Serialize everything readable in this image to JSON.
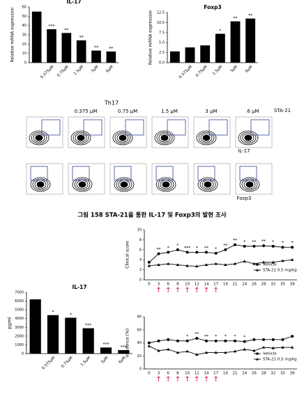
{
  "chart_data": [
    {
      "type": "bar",
      "title": "IL-17",
      "ylabel": "Relative mRNA expression",
      "categories": [
        null,
        "0.375μM",
        "0.75μM",
        "1.5μM",
        "3μM",
        "6μM"
      ],
      "values": [
        55,
        36,
        32,
        24,
        13,
        12
      ],
      "annotations": [
        null,
        "***",
        "**",
        "**",
        "**",
        "**"
      ],
      "color": "#000000",
      "ylim": [
        0,
        60
      ],
      "yticks": [
        0,
        10,
        20,
        30,
        40,
        50,
        60
      ]
    },
    {
      "type": "bar",
      "title": "Foxp3",
      "ylabel": "Relative mRNA expression",
      "categories": [
        null,
        "0.375μM",
        "0.75μM",
        "1.5μM",
        "3μM",
        "6μM"
      ],
      "values": [
        2.8,
        3.8,
        4.3,
        7.2,
        10.3,
        11
      ],
      "annotations": [
        null,
        null,
        null,
        "*",
        "**",
        "**"
      ],
      "color": "#000000",
      "ylim": [
        0,
        12.5
      ],
      "yticks": [
        {
          "value": 0,
          "label": "0.0"
        },
        2.5,
        {
          "value": 5,
          "label": "5.0"
        },
        7.5,
        {
          "value": 10,
          "label": "10.0"
        },
        12.5
      ]
    },
    {
      "type": "bar",
      "title": "IL-17",
      "ylabel": "pg/ml",
      "categories": [
        null,
        "0.375μM",
        "0.75μM",
        "1.5μM",
        "3μM",
        "6μM"
      ],
      "values": [
        6200,
        4400,
        4100,
        2900,
        700,
        400
      ],
      "annotations": [
        null,
        "*",
        "*",
        "***",
        "***",
        "***"
      ],
      "color": "#000000",
      "ylim": [
        0,
        7000
      ],
      "yticks": [
        0,
        1000,
        2000,
        3000,
        4000,
        5000,
        6000,
        7000
      ]
    },
    {
      "type": "line",
      "ylabel": "Clinical score",
      "categories": [
        "0",
        "3",
        "6",
        "8",
        "10",
        "12",
        "14",
        "17",
        "19",
        "21",
        "24",
        "26",
        "28",
        "32",
        "35",
        "39"
      ],
      "series": [
        {
          "name": "Vehicle",
          "color": "#000000",
          "values": [
            3.5,
            5.2,
            5.5,
            6,
            5.5,
            5.5,
            5.5,
            5.3,
            6,
            7,
            6.7,
            6.7,
            6.8,
            6.7,
            6.5,
            6.5
          ]
        },
        {
          "name": "STA-21 0.5 mg/kg",
          "color": "#000000",
          "values": [
            2.8,
            3,
            3.2,
            3,
            2.8,
            2.7,
            3,
            3.2,
            3,
            3.2,
            3.7,
            3.2,
            3.5,
            3.5,
            3.8,
            4
          ]
        }
      ],
      "annotations": [
        null,
        "**",
        "*",
        "*",
        "***",
        "*",
        "**",
        "*",
        "**",
        "**",
        "*",
        "**",
        "**",
        "*",
        "*",
        "*"
      ],
      "ylim": [
        0,
        10
      ],
      "yticks": [
        0,
        2,
        4,
        6,
        8,
        10
      ]
    },
    {
      "type": "line",
      "ylabel": "Incidence (%)",
      "categories": [
        "0",
        "3",
        "6",
        "8",
        "10",
        "12",
        "14",
        "17",
        "19",
        "21",
        "24",
        "26",
        "28",
        "32",
        "35",
        "39"
      ],
      "series": [
        {
          "name": "Vehicle",
          "color": "#000000",
          "values": [
            40,
            43,
            45,
            43,
            43,
            47,
            43,
            43,
            43,
            43,
            42,
            45,
            45,
            45,
            45,
            50
          ]
        },
        {
          "name": "STA-21 0.5 mg/kg",
          "color": "#000000",
          "values": [
            35,
            28,
            30,
            25,
            27,
            22,
            25,
            25,
            25,
            27,
            30,
            28,
            33,
            32,
            33,
            33
          ]
        }
      ],
      "annotations": [
        null,
        null,
        null,
        null,
        "*",
        "**",
        "**",
        "*",
        "*",
        "*",
        "*",
        null,
        null,
        null,
        null,
        null
      ],
      "ylim": [
        0,
        80
      ],
      "yticks": [
        0,
        20,
        40,
        60,
        80
      ]
    }
  ],
  "flow_panel": {
    "group": "Th17",
    "columns": [
      "0.375 μM",
      "0.75 μM",
      "1.5 μM",
      "3 μM",
      "6 μM"
    ],
    "treatment": "STA-21",
    "row_labels": [
      "IL-17",
      "Foxp3"
    ]
  },
  "caption": "그림 158  STA-21을 통한 IL-17 및 Foxp3의 발현 조사"
}
